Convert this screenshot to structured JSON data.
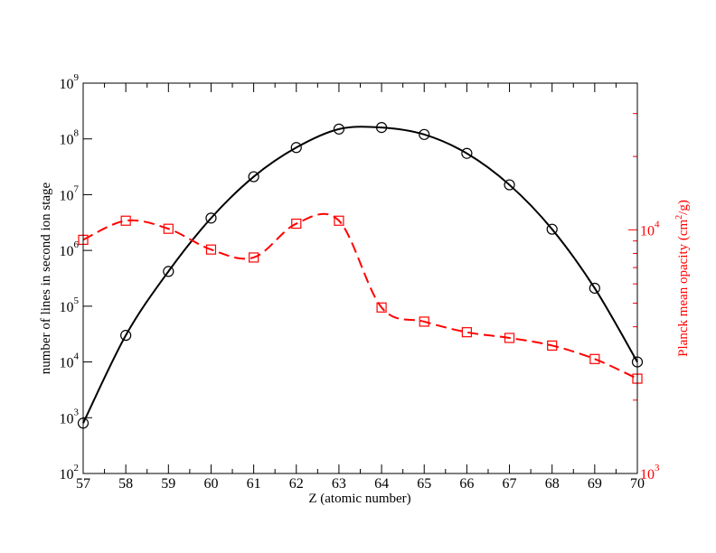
{
  "chart_data": {
    "type": "line",
    "xlabel": "Z (atomic number)",
    "ylabel": "number of lines in second ion stage",
    "y2label_pre": "Planck mean opacity (cm",
    "y2label_exp": "2",
    "y2label_post": "/g)",
    "x": [
      57,
      58,
      59,
      60,
      61,
      62,
      63,
      64,
      65,
      66,
      67,
      68,
      69,
      70
    ],
    "xlim": [
      57,
      70
    ],
    "ylim": [
      100,
      1000000000
    ],
    "y2lim": [
      1000,
      40000
    ],
    "yscale": "log",
    "y2scale": "log",
    "x_ticks": [
      "57",
      "58",
      "59",
      "60",
      "61",
      "62",
      "63",
      "64",
      "65",
      "66",
      "67",
      "68",
      "69",
      "70"
    ],
    "y_ticks": [
      {
        "base": "10",
        "exp": "2",
        "value": 100
      },
      {
        "base": "10",
        "exp": "3",
        "value": 1000
      },
      {
        "base": "10",
        "exp": "4",
        "value": 10000
      },
      {
        "base": "10",
        "exp": "5",
        "value": 100000
      },
      {
        "base": "10",
        "exp": "6",
        "value": 1000000
      },
      {
        "base": "10",
        "exp": "7",
        "value": 10000000
      },
      {
        "base": "10",
        "exp": "8",
        "value": 100000000
      },
      {
        "base": "10",
        "exp": "9",
        "value": 1000000000
      }
    ],
    "y2_ticks": [
      {
        "base": "10",
        "exp": "3",
        "value": 1000
      },
      {
        "base": "10",
        "exp": "4",
        "value": 10000
      }
    ],
    "series": [
      {
        "axis": "left",
        "color": "#000000",
        "marker": "circle",
        "linestyle": "solid",
        "values": [
          800,
          30000,
          420000,
          3800000,
          21000000,
          70000000,
          150000000,
          160000000,
          120000000,
          55000000,
          15000000,
          2400000,
          210000,
          10000
        ]
      },
      {
        "axis": "right",
        "color": "#ff0000",
        "marker": "square",
        "linestyle": "dashed",
        "values": [
          9100,
          10900,
          10100,
          8300,
          7700,
          10600,
          10900,
          4800,
          4200,
          3800,
          3600,
          3350,
          2950,
          2450
        ]
      }
    ]
  }
}
